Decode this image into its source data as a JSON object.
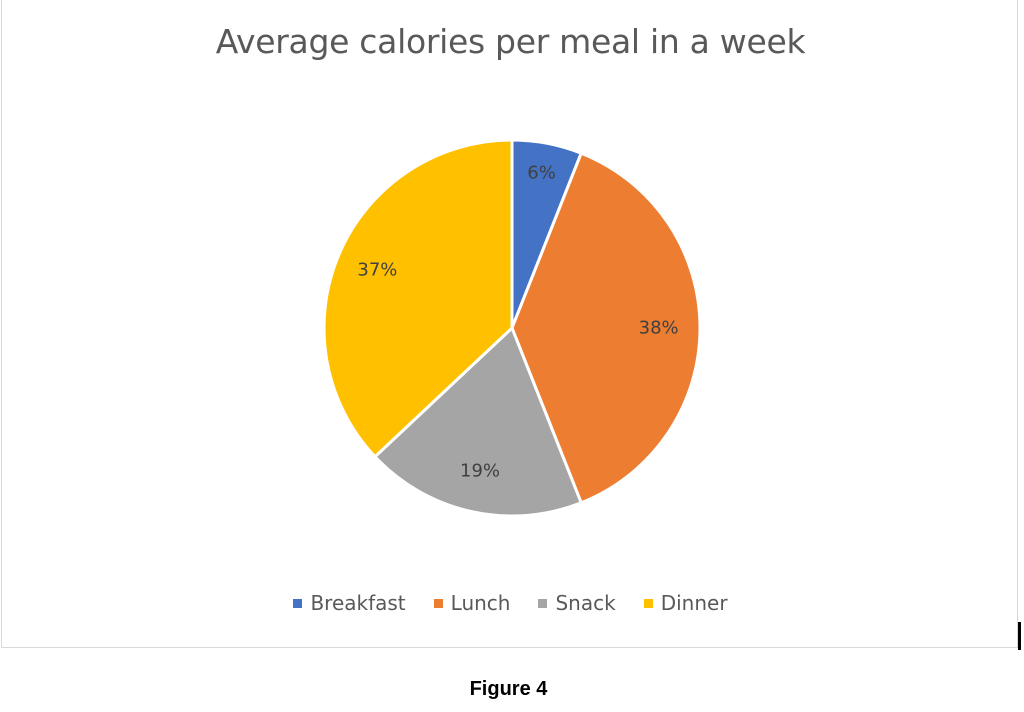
{
  "chart_data": {
    "type": "pie",
    "title": "Average calories per meal in a week",
    "categories": [
      "Breakfast",
      "Lunch",
      "Snack",
      "Dinner"
    ],
    "values": [
      6,
      38,
      19,
      37
    ],
    "labels": [
      "6%",
      "38%",
      "19%",
      "37%"
    ],
    "colors": [
      "#4472c4",
      "#ed7d31",
      "#a5a5a5",
      "#ffc000"
    ],
    "legend_position": "bottom"
  },
  "caption": "Figure 4"
}
